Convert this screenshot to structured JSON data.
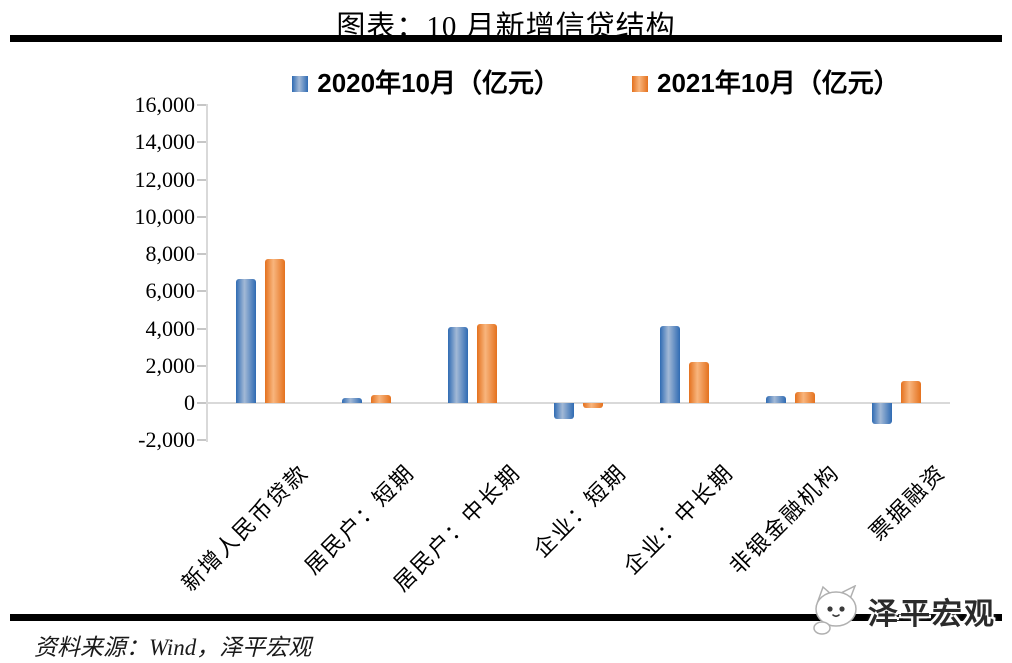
{
  "page": {
    "title": "图表：10 月新增信贷结构",
    "source_note": "资料来源：Wind，泽平宏观",
    "watermark_label": "泽平宏观"
  },
  "chart_data": {
    "type": "bar",
    "title": "图表：10 月新增信贷结构",
    "unit": "亿元",
    "categories": [
      "新增人民币贷款",
      "居民户：短期",
      "居民户：中长期",
      "企业：短期",
      "企业：中长期",
      "非银金融机构",
      "票据融资"
    ],
    "series": [
      {
        "name": "2020年10月（亿元）",
        "color": "#2f6bb3",
        "color_light": "#a3b9d6",
        "values": [
          6663,
          272,
          4059,
          -837,
          4113,
          362,
          -1124
        ]
      },
      {
        "name": "2021年10月（亿元）",
        "color": "#e4711e",
        "color_light": "#f8b57d",
        "values": [
          7752,
          426,
          4221,
          -288,
          2190,
          583,
          1160
        ]
      }
    ],
    "ylim": [
      -2000,
      16000
    ],
    "ytick_step": 2000,
    "ytick_labels": [
      "-2,000",
      "0",
      "2,000",
      "4,000",
      "6,000",
      "8,000",
      "10,000",
      "12,000",
      "14,000",
      "16,000"
    ],
    "legend_position": "top",
    "grid": false
  }
}
